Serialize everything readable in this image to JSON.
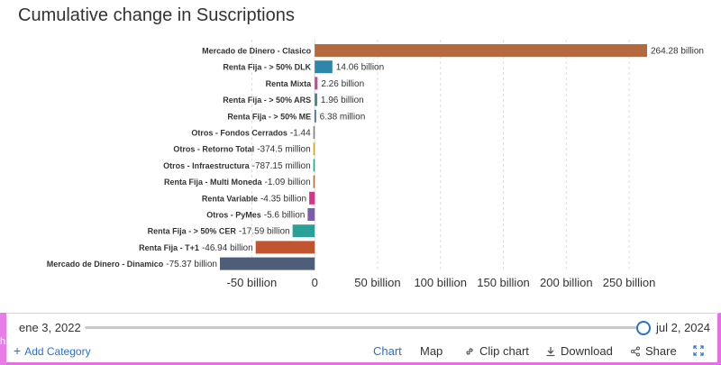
{
  "page": {
    "title": "Cumulative change in Suscriptions"
  },
  "chart_data": {
    "type": "bar",
    "orientation": "horizontal",
    "title": "Cumulative change in Suscriptions",
    "xlim": [
      -75.37,
      264.28
    ],
    "x_ticks": [
      {
        "value": -50,
        "label": "-50 billion"
      },
      {
        "value": 0,
        "label": "0"
      },
      {
        "value": 50,
        "label": "50 billion"
      },
      {
        "value": 100,
        "label": "100 billion"
      },
      {
        "value": 150,
        "label": "150 billion"
      },
      {
        "value": 200,
        "label": "200 billion"
      },
      {
        "value": 250,
        "label": "250 billion"
      }
    ],
    "grid": true,
    "bars": [
      {
        "category": "Mercado de Dinero - Clasico",
        "value": 264.28,
        "label": "264.28 billion",
        "color": "#b5693f"
      },
      {
        "category": "Renta Fija - > 50% DLK",
        "value": 14.06,
        "label": "14.06 billion",
        "color": "#2e86ab"
      },
      {
        "category": "Renta Mixta",
        "value": 2.26,
        "label": "2.26 billion",
        "color": "#c44d8f"
      },
      {
        "category": "Renta Fija - > 50% ARS",
        "value": 1.96,
        "label": "1.96 billion",
        "color": "#3d8a78"
      },
      {
        "category": "Renta Fija - > 50% ME",
        "value": 0.00638,
        "label": "6.38 million",
        "color": "#2e5f8a"
      },
      {
        "category": "Otros - Fondos Cerrados",
        "value": -1.44e-09,
        "label": "-1.44",
        "color": "#7f7f7f"
      },
      {
        "category": "Otros - Retorno Total",
        "value": -0.3745,
        "label": "-374.5 million",
        "color": "#c9a227"
      },
      {
        "category": "Otros - Infraestructura",
        "value": -0.78715,
        "label": "-787.15 million",
        "color": "#2a9d8f"
      },
      {
        "category": "Renta Fija - Multi Moneda",
        "value": -1.09,
        "label": "-1.09 billion",
        "color": "#b5693f"
      },
      {
        "category": "Renta Variable",
        "value": -4.35,
        "label": "-4.35 billion",
        "color": "#d6338a"
      },
      {
        "category": "Otros - PyMes",
        "value": -5.6,
        "label": "-5.6 billion",
        "color": "#7b5ea7"
      },
      {
        "category": "Renta Fija - > 50% CER",
        "value": -17.59,
        "label": "-17.59 billion",
        "color": "#2aa198"
      },
      {
        "category": "Renta Fija - T+1",
        "value": -46.94,
        "label": "-46.94 billion",
        "color": "#c0552f"
      },
      {
        "category": "Mercado de Dinero - Dinamico",
        "value": -75.37,
        "label": "-75.37 billion",
        "color": "#4e5d78"
      }
    ]
  },
  "slider": {
    "start_label": "ene 3, 2022",
    "end_label": "jul 2, 2024",
    "position": 1.0
  },
  "toolbar": {
    "add_category": "Add Category",
    "chart": "Chart",
    "map": "Map",
    "clip_chart": "Clip chart",
    "download": "Download",
    "share": "Share"
  },
  "left_stripe": {
    "label": "h"
  },
  "colors": {
    "accent": "#2b6fce",
    "border": "#e66fe6"
  }
}
